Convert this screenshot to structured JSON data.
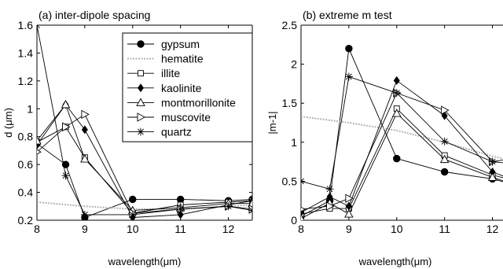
{
  "chart_data": [
    {
      "type": "line",
      "title": "(a)  inter-dipole spacing",
      "xlabel": "wavelength(μm)",
      "ylabel": "d (μm)",
      "xlim": [
        8,
        12.5
      ],
      "ylim": [
        0.2,
        1.6
      ],
      "xticks": [
        8,
        9,
        10,
        11,
        12
      ],
      "yticks": [
        0.2,
        0.4,
        0.6,
        0.8,
        1,
        1.2,
        1.4,
        1.6
      ],
      "xtick_labels": [
        "8",
        "9",
        "10",
        "11",
        "12"
      ],
      "ytick_labels": [
        "0.2",
        "0.4",
        "0.6",
        "0.8",
        "1",
        "1.2",
        "1.4",
        "1.6"
      ],
      "grid": false,
      "legend_position": "top-right",
      "series": [
        {
          "name": "gypsum",
          "marker": "filled-circle",
          "x": [
            8,
            8.6,
            9,
            10,
            11,
            12,
            12.5
          ],
          "y": [
            0.75,
            0.6,
            0.22,
            0.35,
            0.35,
            0.34,
            0.35
          ]
        },
        {
          "name": "hematite",
          "marker": "none",
          "dashed": true,
          "x": [
            8,
            9,
            10,
            11,
            12,
            12.5
          ],
          "y": [
            0.33,
            0.3,
            0.28,
            0.28,
            0.3,
            0.31
          ]
        },
        {
          "name": "illite",
          "marker": "open-square",
          "x": [
            8,
            8.6,
            9,
            10,
            11,
            12,
            12.5
          ],
          "y": [
            0.76,
            0.87,
            0.65,
            0.25,
            0.31,
            0.33,
            0.34
          ]
        },
        {
          "name": "kaolinite",
          "marker": "filled-diamond",
          "x": [
            8,
            8.6,
            9,
            10,
            11,
            12,
            12.5
          ],
          "y": [
            0.74,
            1.03,
            0.85,
            0.22,
            0.24,
            0.31,
            0.34
          ]
        },
        {
          "name": "montmorillonite",
          "marker": "open-triangle-up",
          "x": [
            8,
            8.6,
            9,
            10,
            11,
            12,
            12.5
          ],
          "y": [
            0.77,
            1.03,
            0.64,
            0.27,
            0.29,
            0.32,
            0.32
          ]
        },
        {
          "name": "muscovite",
          "marker": "open-triangle-right",
          "x": [
            8,
            8.6,
            9,
            10,
            11,
            12,
            12.5
          ],
          "y": [
            0.69,
            0.87,
            0.96,
            0.25,
            0.28,
            0.3,
            0.28
          ]
        },
        {
          "name": "quartz",
          "marker": "asterisk",
          "x": [
            8,
            8.6,
            9,
            10,
            11,
            12,
            12.5
          ],
          "y": [
            1.6,
            0.52,
            0.24,
            0.24,
            0.28,
            0.3,
            0.27
          ]
        }
      ]
    },
    {
      "type": "line",
      "title": "(b)  extreme m test",
      "xlabel": "wavelength(μm)",
      "ylabel": "|m-1|",
      "xlim": [
        8,
        12.5
      ],
      "ylim": [
        0,
        2.5
      ],
      "xticks": [
        8,
        9,
        10,
        11,
        12
      ],
      "yticks": [
        0,
        0.5,
        1,
        1.5,
        2,
        2.5
      ],
      "xtick_labels": [
        "8",
        "9",
        "10",
        "11",
        "12"
      ],
      "ytick_labels": [
        "0",
        "0.5",
        "1",
        "1.5",
        "2",
        "2.5"
      ],
      "grid": false,
      "series": [
        {
          "name": "gypsum",
          "marker": "filled-circle",
          "x": [
            8,
            8.6,
            9,
            10,
            11,
            12,
            12.5
          ],
          "y": [
            0.05,
            0.25,
            2.2,
            0.79,
            0.62,
            0.53,
            0.45
          ]
        },
        {
          "name": "hematite",
          "marker": "none",
          "dashed": true,
          "x": [
            8,
            9,
            10,
            11,
            12,
            12.5
          ],
          "y": [
            1.33,
            1.25,
            1.15,
            1.0,
            0.82,
            0.75
          ]
        },
        {
          "name": "illite",
          "marker": "open-square",
          "x": [
            8,
            8.6,
            9,
            10,
            11,
            12,
            12.5
          ],
          "y": [
            0.08,
            0.15,
            0.15,
            1.43,
            0.83,
            0.58,
            0.5
          ]
        },
        {
          "name": "kaolinite",
          "marker": "filled-diamond",
          "x": [
            8,
            8.6,
            9,
            10,
            11,
            12,
            12.5
          ],
          "y": [
            0.1,
            0.3,
            0.18,
            1.79,
            1.34,
            0.62,
            0.5
          ]
        },
        {
          "name": "montmorillonite",
          "marker": "open-triangle-up",
          "x": [
            8,
            8.6,
            9,
            10,
            11,
            12,
            12.5
          ],
          "y": [
            0.02,
            0.22,
            0.08,
            1.37,
            0.78,
            0.55,
            0.45
          ]
        },
        {
          "name": "muscovite",
          "marker": "open-triangle-right",
          "x": [
            8,
            8.6,
            9,
            10,
            11,
            12,
            12.5
          ],
          "y": [
            0.14,
            0.18,
            0.28,
            1.63,
            1.41,
            0.75,
            0.8
          ]
        },
        {
          "name": "quartz",
          "marker": "asterisk",
          "x": [
            8,
            8.6,
            9,
            10,
            11,
            12,
            12.5
          ],
          "y": [
            0.5,
            0.4,
            1.84,
            1.63,
            1.01,
            0.75,
            0.72
          ]
        }
      ]
    }
  ]
}
